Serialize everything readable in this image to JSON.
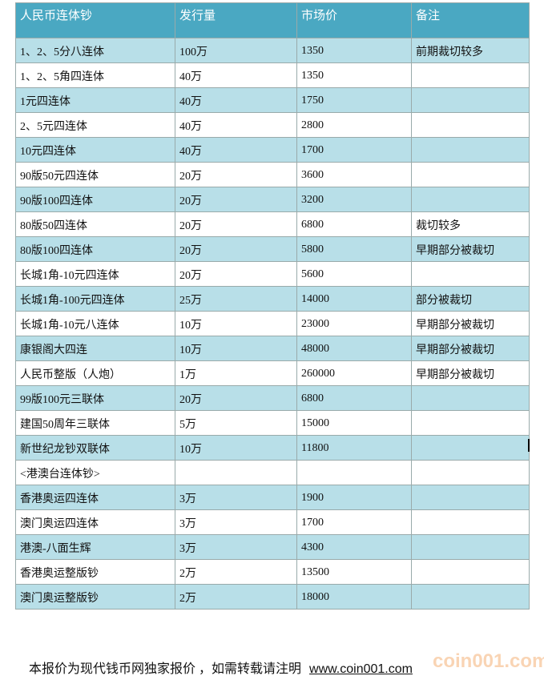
{
  "table": {
    "header": [
      "人民币连体钞",
      "发行量",
      "市场价",
      "备注"
    ],
    "rows": [
      [
        "1、2、5分八连体",
        "100万",
        "1350",
        "前期裁切较多"
      ],
      [
        "1、2、5角四连体",
        "40万",
        "1350"
      ],
      [
        "1元四连体",
        "40万",
        "1750"
      ],
      [
        "2、5元四连体",
        "40万",
        "2800"
      ],
      [
        "10元四连体",
        "40万",
        "1700"
      ],
      [
        "90版50元四连体",
        "20万",
        "3600"
      ],
      [
        "90版100四连体",
        "20万",
        "3200"
      ],
      [
        "80版50四连体",
        "20万",
        "6800",
        "裁切较多"
      ],
      [
        "80版100四连体",
        "20万",
        "5800",
        "早期部分被裁切"
      ],
      [
        "长城1角-10元四连体",
        "20万",
        "5600"
      ],
      [
        "长城1角-100元四连体",
        "25万",
        "14000",
        "部分被裁切"
      ],
      [
        "长城1角-10元八连体",
        "10万",
        "23000",
        "早期部分被裁切"
      ],
      [
        "康银阁大四连",
        "10万",
        "48000",
        "早期部分被裁切"
      ],
      [
        "人民币整版（人炮）",
        "1万",
        "260000",
        "早期部分被裁切"
      ],
      [
        "99版100元三联体",
        "20万",
        "6800"
      ],
      [
        "建国50周年三联体",
        "5万",
        "15000"
      ],
      [
        "新世纪龙钞双联体",
        "10万",
        "11800"
      ],
      [
        "<港澳台连体钞>"
      ],
      [
        "香港奥运四连体",
        "3万",
        "1900"
      ],
      [
        "澳门奥运四连体",
        "3万",
        "1700"
      ],
      [
        "港澳-八面生辉",
        "3万",
        "4300"
      ],
      [
        "香港奥运整版钞",
        "2万",
        "13500"
      ],
      [
        "澳门奥运整版钞",
        "2万",
        "18000"
      ]
    ]
  },
  "footer": {
    "note": "本报价为现代钱币网独家报价 ，如需转载请注明",
    "link": "www.coin001.com"
  },
  "watermark": "coin001.com"
}
